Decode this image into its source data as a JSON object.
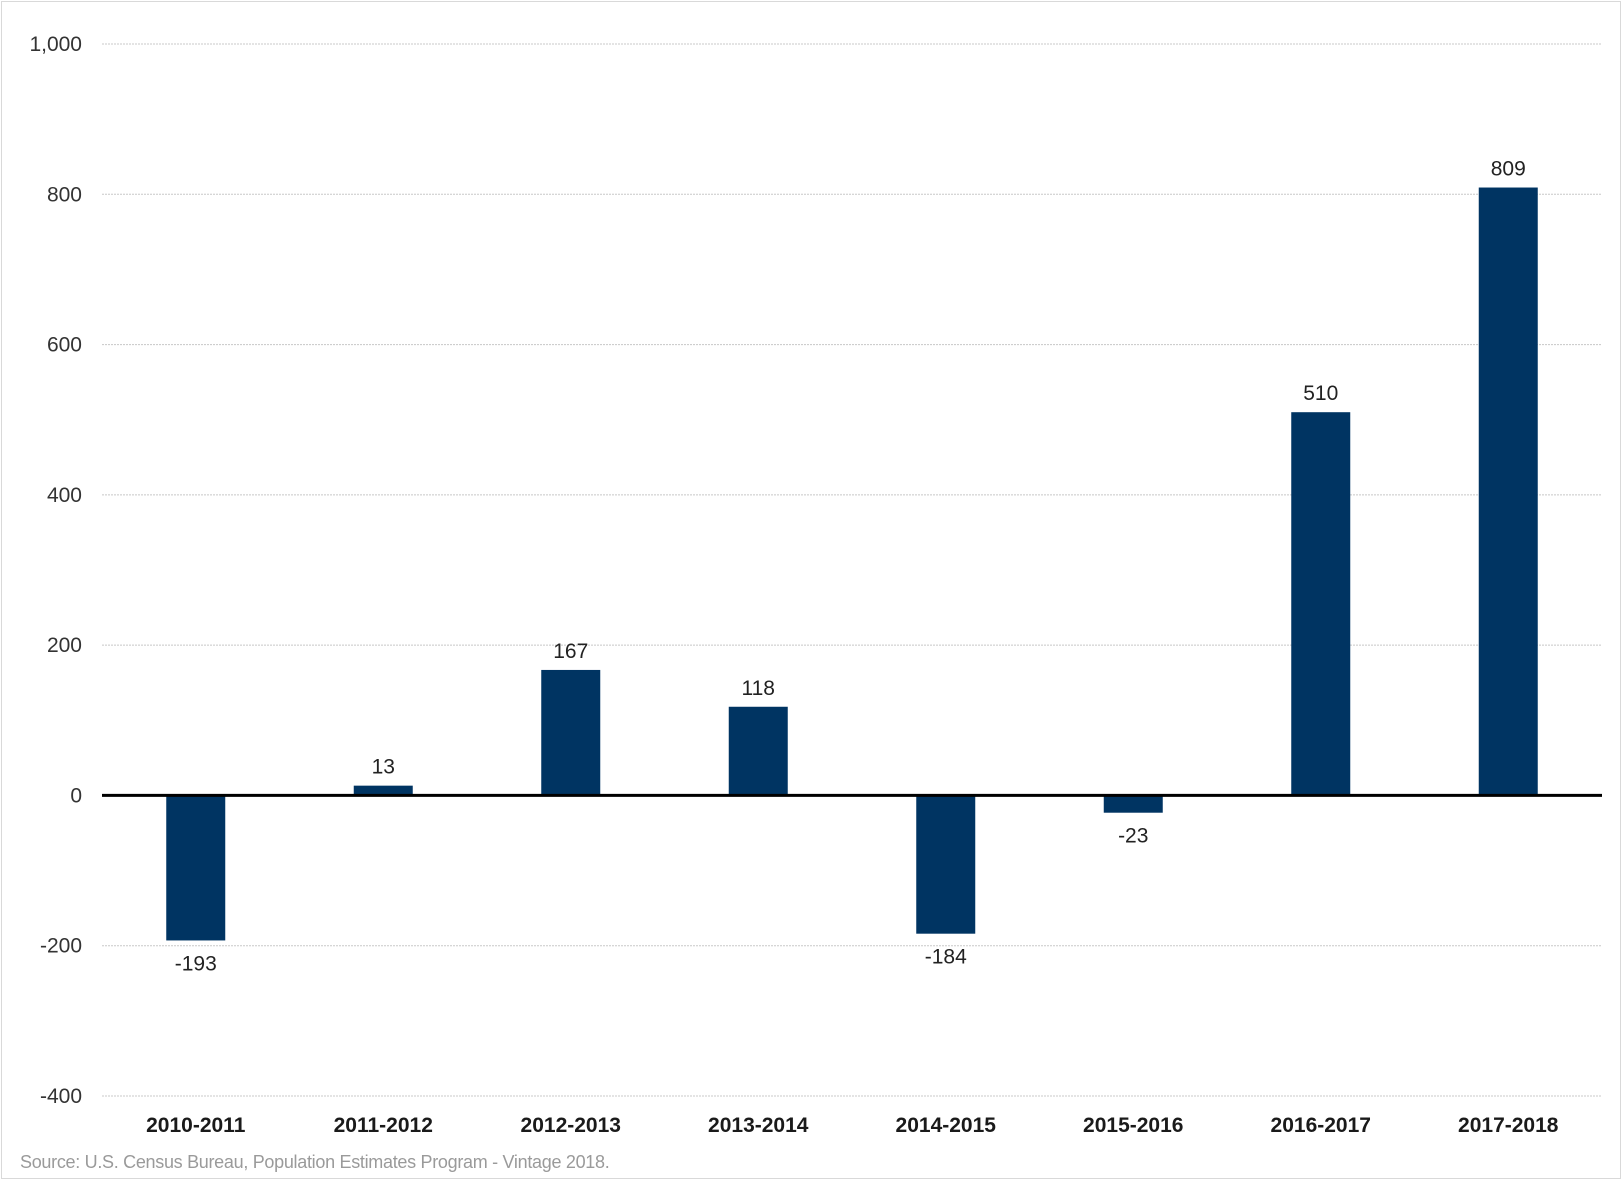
{
  "chart_data": {
    "type": "bar",
    "categories": [
      "2010-2011",
      "2011-2012",
      "2012-2013",
      "2013-2014",
      "2014-2015",
      "2015-2016",
      "2016-2017",
      "2017-2018"
    ],
    "values": [
      -193,
      13,
      167,
      118,
      -184,
      -23,
      510,
      809
    ],
    "data_labels": [
      "-193",
      "13",
      "167",
      "118",
      "-184",
      "-23",
      "510",
      "809"
    ],
    "y_ticks": [
      -400,
      -200,
      0,
      200,
      400,
      600,
      800,
      1000
    ],
    "y_tick_labels": [
      "-400",
      "-200",
      "0",
      "200",
      "400",
      "600",
      "800",
      "1,000"
    ],
    "ylim": [
      -400,
      1000
    ],
    "grid": true,
    "bar_color": "#003462",
    "title": "",
    "xlabel": "",
    "ylabel": ""
  },
  "source_note": "Source: U.S. Census Bureau, Population Estimates Program - Vintage 2018."
}
